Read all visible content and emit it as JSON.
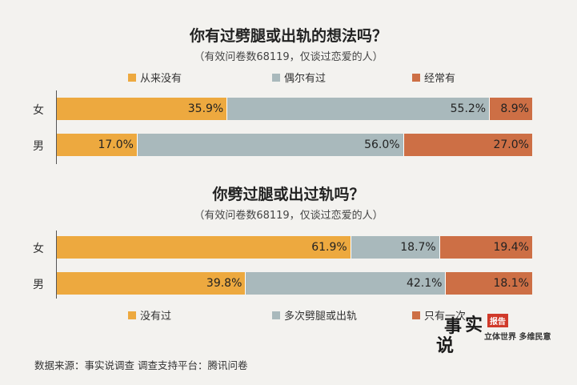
{
  "colors": {
    "never": "#eda93f",
    "occasional": "#a9b9bc",
    "often": "#cd6f45"
  },
  "chart_data": [
    {
      "type": "bar",
      "orientation": "horizontal",
      "stacked": true,
      "title": "你有过劈腿或出轨的想法吗？",
      "subtitle": "（有效问卷数68119，仅谈过恋爱的人）",
      "categories": [
        "女",
        "男"
      ],
      "legend_position": "top",
      "series": [
        {
          "name": "从来没有",
          "color": "#eda93f",
          "values": [
            35.9,
            17.0
          ],
          "labels": [
            "35.9%",
            "17.0%"
          ]
        },
        {
          "name": "偶尔有过",
          "color": "#a9b9bc",
          "values": [
            55.2,
            56.0
          ],
          "labels": [
            "55.2%",
            "56.0%"
          ]
        },
        {
          "name": "经常有",
          "color": "#cd6f45",
          "values": [
            8.9,
            27.0
          ],
          "labels": [
            "8.9%",
            "27.0%"
          ]
        }
      ],
      "xlim": [
        0,
        100
      ]
    },
    {
      "type": "bar",
      "orientation": "horizontal",
      "stacked": true,
      "title": "你劈过腿或出过轨吗？",
      "subtitle": "（有效问卷数68119，仅谈过恋爱的人）",
      "categories": [
        "女",
        "男"
      ],
      "legend_position": "bottom",
      "series": [
        {
          "name": "没有过",
          "color": "#eda93f",
          "values": [
            61.9,
            39.8
          ],
          "labels": [
            "61.9%",
            "39.8%"
          ]
        },
        {
          "name": "多次劈腿或出轨",
          "color": "#a9b9bc",
          "values": [
            18.7,
            42.1
          ],
          "labels": [
            "18.7%",
            "42.1%"
          ]
        },
        {
          "name": "只有一次",
          "color": "#cd6f45",
          "values": [
            19.4,
            18.1
          ],
          "labels": [
            "19.4%",
            "18.1%"
          ]
        }
      ],
      "xlim": [
        0,
        100
      ]
    }
  ],
  "footer": {
    "source": "数据来源：事实说调查   调查支持平台：腾讯问卷"
  },
  "logo": {
    "tag": "报告",
    "slogan": "立体世界 多维民意",
    "text": "事实说"
  }
}
